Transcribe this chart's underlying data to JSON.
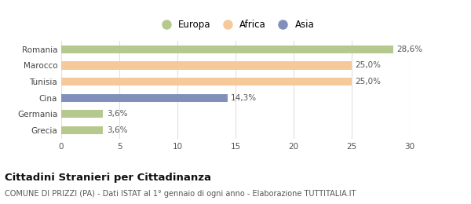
{
  "categories": [
    "Romania",
    "Marocco",
    "Tunisia",
    "Cina",
    "Germania",
    "Grecia"
  ],
  "values": [
    28.6,
    25.0,
    25.0,
    14.3,
    3.6,
    3.6
  ],
  "colors": [
    "#b5c98e",
    "#f5c99a",
    "#f5c99a",
    "#8090bb",
    "#b5c98e",
    "#b5c98e"
  ],
  "labels": [
    "28,6%",
    "25,0%",
    "25,0%",
    "14,3%",
    "3,6%",
    "3,6%"
  ],
  "legend_items": [
    {
      "label": "Europa",
      "color": "#b5c98e"
    },
    {
      "label": "Africa",
      "color": "#f5c99a"
    },
    {
      "label": "Asia",
      "color": "#8090bb"
    }
  ],
  "xlim": [
    0,
    30
  ],
  "xticks": [
    0,
    5,
    10,
    15,
    20,
    25,
    30
  ],
  "title_bold": "Cittadini Stranieri per Cittadinanza",
  "subtitle": "COMUNE DI PRIZZI (PA) - Dati ISTAT al 1° gennaio di ogni anno - Elaborazione TUTTITALIA.IT",
  "background_color": "#ffffff",
  "grid_color": "#e0e0e0",
  "bar_height": 0.5,
  "label_fontsize": 7.5,
  "tick_fontsize": 7.5,
  "legend_fontsize": 8.5,
  "title_fontsize": 9.5,
  "subtitle_fontsize": 7.0
}
